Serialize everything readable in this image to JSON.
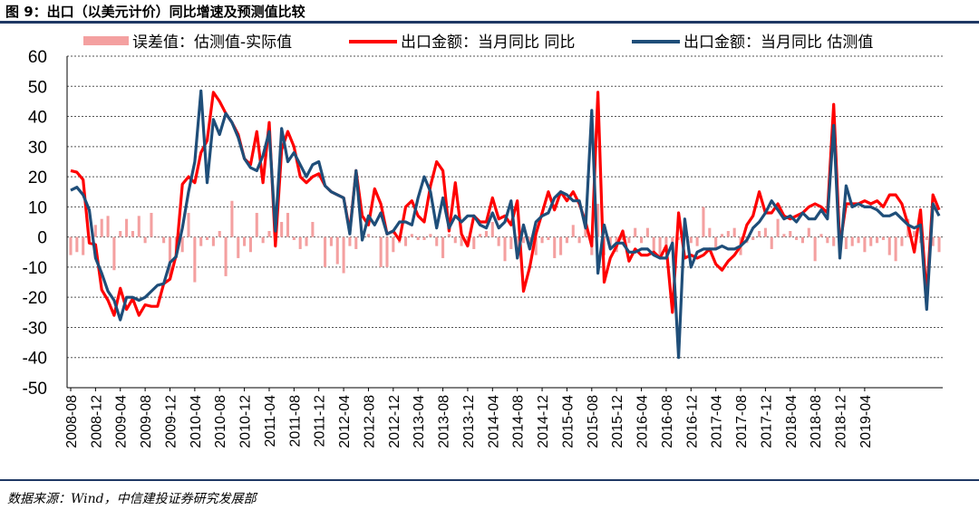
{
  "figure": {
    "title": "图 9：出口（以美元计价）同比增速及预测值比较",
    "source": "数据来源：Wind，中信建投证券研究发展部"
  },
  "chart_data": {
    "type": "line",
    "ylim": [
      -50,
      60
    ],
    "yticks": [
      "60",
      "50",
      "40",
      "30",
      "20",
      "10",
      "0",
      "-10",
      "-20",
      "-30",
      "-40",
      "-50"
    ],
    "grid": true,
    "legend_position": "top",
    "colors": {
      "error_bar": "#f4a0a0",
      "actual": "#ff0000",
      "estimate": "#1f4e79"
    },
    "x_tick_labels": [
      "2008-08",
      "2008-12",
      "2009-04",
      "2009-08",
      "2009-12",
      "2010-04",
      "2010-08",
      "2010-12",
      "2011-04",
      "2011-08",
      "2011-12",
      "2012-04",
      "2012-08",
      "2012-12",
      "2013-04",
      "2013-08",
      "2013-12",
      "2014-04",
      "2014-08",
      "2014-12",
      "2015-04",
      "2015-08",
      "2015-12",
      "2016-04",
      "2016-08",
      "2016-12",
      "2017-04",
      "2017-08",
      "2017-12",
      "2018-04",
      "2018-08",
      "2018-12",
      "2019-04"
    ],
    "series": [
      {
        "name": "误差值：估测值-实际值",
        "kind": "bar",
        "values": [
          -6,
          -5,
          -6,
          -2,
          4,
          6,
          7,
          -11,
          2,
          6,
          2,
          7,
          -2,
          8,
          0,
          -2,
          -13,
          -7,
          -5,
          8,
          -15,
          -3,
          -1,
          -3,
          2,
          -13,
          12,
          -7,
          -3,
          -5,
          8,
          -2,
          2,
          -3,
          5,
          8,
          -1,
          -4,
          -3,
          5,
          0,
          -10,
          -3,
          -9,
          -12,
          -3,
          -4,
          -1,
          1,
          0,
          -10,
          -10,
          -5,
          -2,
          -3,
          1,
          -1,
          -1,
          1,
          -3,
          -7,
          1,
          -2,
          -3,
          -3,
          -4,
          1,
          2,
          5,
          -3,
          -8,
          -4,
          -4,
          -2,
          -3,
          -6,
          -2,
          -1,
          -7,
          -6,
          -2,
          4,
          -2,
          4,
          -6,
          11,
          -6,
          -3,
          -5,
          -1,
          -2,
          3,
          -2,
          3,
          -5,
          -7,
          -5,
          -3,
          -1,
          3,
          -2,
          -3,
          10,
          3,
          -4,
          1,
          2,
          3,
          -6,
          -2,
          -1,
          2,
          3,
          -4,
          6,
          1,
          2,
          -1,
          -2,
          3,
          -8,
          1,
          -2,
          -3,
          2,
          -4,
          -3,
          -2,
          -5,
          -3,
          -2,
          -1,
          -6,
          -8,
          -3,
          6,
          2,
          -2,
          -1,
          -3,
          -5,
          -3,
          -2,
          -1,
          -2,
          2,
          -1,
          -4,
          -1,
          -5,
          2,
          2,
          -3,
          -2
        ]
      },
      {
        "name": "出口金额：当月同比 同比",
        "kind": "line",
        "values": [
          22,
          21.5,
          19,
          -2,
          -2.5,
          -17.5,
          -21,
          -26,
          -17,
          -24,
          -20.5,
          -26,
          -22.5,
          -23,
          -23,
          -15.5,
          -14,
          -6,
          17.5,
          20,
          18,
          28,
          32,
          48,
          45,
          41,
          38,
          34,
          26,
          24,
          35,
          18,
          38,
          -3,
          29,
          35,
          30,
          20,
          18,
          20,
          21,
          17,
          15,
          14,
          13,
          2,
          22,
          7,
          4,
          16,
          11,
          1,
          2,
          -1,
          10,
          12,
          7,
          5,
          17,
          25,
          22,
          2,
          18,
          1,
          -3,
          7,
          5,
          5,
          13,
          6,
          7,
          4,
          12,
          -18,
          -10,
          1,
          8,
          15,
          9,
          15,
          12,
          15,
          11,
          5,
          -3,
          48,
          -15,
          -7,
          -3,
          2,
          -8,
          -4,
          -6,
          -6,
          -5,
          -7,
          -3,
          -25,
          8,
          -7,
          -6,
          -7,
          -6,
          -4,
          -9,
          -11,
          -8,
          -6,
          -3,
          4,
          7,
          15,
          8,
          8,
          11,
          7,
          6,
          7,
          8,
          10,
          11,
          10,
          8,
          44,
          -3,
          11,
          11,
          11,
          12,
          11,
          12,
          10,
          14,
          14,
          11,
          4,
          -5,
          9,
          -20,
          14,
          9
        ]
      },
      {
        "name": "出口金额：当月同比 估测值",
        "kind": "line",
        "values": [
          15.5,
          16.5,
          14,
          9,
          -7,
          -12,
          -18,
          -21,
          -27.5,
          -20,
          -20,
          -21,
          -20,
          -18,
          -16,
          -15.5,
          -8.5,
          -6.5,
          3,
          15,
          25,
          48.5,
          18,
          39,
          34,
          41,
          38,
          33,
          26,
          23,
          22,
          27,
          35,
          2,
          36,
          25,
          28,
          24,
          20,
          24,
          25,
          17,
          15,
          14,
          13,
          1,
          22,
          -1,
          7,
          4,
          8,
          1,
          2,
          5,
          5,
          4,
          13,
          20,
          15,
          3,
          13,
          3,
          7,
          5,
          7,
          7,
          4,
          3,
          8,
          3,
          5,
          12,
          -7,
          4,
          -4,
          5,
          7,
          8,
          13,
          15,
          14,
          12,
          12,
          3,
          42,
          -12,
          4,
          -4,
          -2,
          -2,
          -5,
          -5,
          -4,
          -4,
          -6,
          -7,
          -7,
          -2,
          -40,
          6,
          -10,
          -5,
          -4,
          -4,
          -4,
          -3,
          -4,
          -4,
          -3,
          -1,
          3,
          5,
          8,
          12,
          9,
          6,
          7,
          5,
          8,
          6,
          6,
          9,
          6,
          37,
          -7,
          17,
          10,
          11,
          10,
          10,
          9,
          7,
          7,
          8,
          6,
          4,
          3,
          4,
          -24,
          11,
          7
        ]
      }
    ]
  }
}
